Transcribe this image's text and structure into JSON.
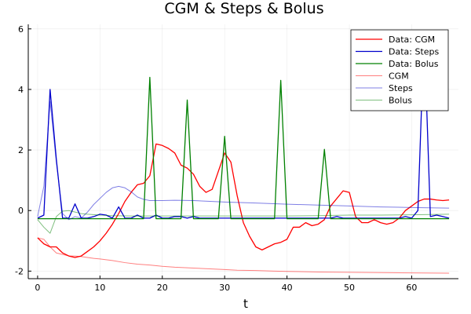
{
  "chart_data": {
    "type": "line",
    "title": "CGM & Steps & Bolus",
    "xlabel": "t",
    "ylabel": "",
    "xlim": [
      -1.5,
      67.5
    ],
    "ylim": [
      -2.25,
      6.15
    ],
    "xticks": [
      0,
      10,
      20,
      30,
      40,
      50,
      60
    ],
    "yticks": [
      -2,
      0,
      2,
      4,
      6
    ],
    "grid": true,
    "legend_position": "top-right",
    "series": [
      {
        "name": "Data: CGM",
        "color": "#ff0000",
        "opacity": 1,
        "width": 1.3,
        "x": [
          0,
          1,
          2,
          3,
          4,
          5,
          6,
          7,
          8,
          9,
          10,
          11,
          12,
          13,
          14,
          15,
          16,
          17,
          18,
          19,
          20,
          21,
          22,
          23,
          24,
          25,
          26,
          27,
          28,
          29,
          30,
          31,
          32,
          33,
          34,
          35,
          36,
          37,
          38,
          39,
          40,
          41,
          42,
          43,
          44,
          45,
          46,
          47,
          48,
          49,
          50,
          51,
          52,
          53,
          54,
          55,
          56,
          57,
          58,
          59,
          60,
          61,
          62,
          63,
          64,
          65,
          66
        ],
        "values": [
          -0.9,
          -1.1,
          -1.2,
          -1.2,
          -1.4,
          -1.5,
          -1.55,
          -1.5,
          -1.35,
          -1.2,
          -1.0,
          -0.75,
          -0.45,
          -0.1,
          0.3,
          0.6,
          0.85,
          0.9,
          1.15,
          2.2,
          2.15,
          2.05,
          1.9,
          1.5,
          1.4,
          1.2,
          0.8,
          0.6,
          0.7,
          1.3,
          1.9,
          1.6,
          0.5,
          -0.4,
          -0.85,
          -1.2,
          -1.3,
          -1.2,
          -1.1,
          -1.05,
          -0.95,
          -0.55,
          -0.55,
          -0.4,
          -0.5,
          -0.45,
          -0.3,
          0.15,
          0.4,
          0.65,
          0.6,
          -0.2,
          -0.4,
          -0.4,
          -0.3,
          -0.4,
          -0.45,
          -0.4,
          -0.25,
          0.0,
          0.15,
          0.3,
          0.38,
          0.38,
          0.35,
          0.33,
          0.35
        ]
      },
      {
        "name": "Data: Steps",
        "color": "#0000cc",
        "opacity": 1,
        "width": 1.3,
        "x": [
          0,
          1,
          2,
          3,
          4,
          5,
          6,
          7,
          8,
          9,
          10,
          11,
          12,
          13,
          14,
          15,
          16,
          17,
          18,
          19,
          20,
          21,
          22,
          23,
          24,
          25,
          26,
          27,
          28,
          29,
          30,
          31,
          32,
          33,
          34,
          35,
          36,
          37,
          38,
          39,
          40,
          41,
          42,
          43,
          44,
          45,
          46,
          47,
          48,
          49,
          50,
          51,
          52,
          53,
          54,
          55,
          56,
          57,
          58,
          59,
          60,
          61,
          62,
          63,
          64,
          65,
          66
        ],
        "values": [
          -0.25,
          -0.15,
          4.0,
          1.7,
          -0.25,
          -0.25,
          0.22,
          -0.25,
          -0.25,
          -0.2,
          -0.12,
          -0.15,
          -0.25,
          0.12,
          -0.25,
          -0.25,
          -0.15,
          -0.25,
          -0.25,
          -0.15,
          -0.25,
          -0.25,
          -0.2,
          -0.2,
          -0.25,
          -0.2,
          -0.25,
          -0.25,
          -0.25,
          -0.25,
          -0.25,
          -0.25,
          -0.25,
          -0.25,
          -0.25,
          -0.25,
          -0.25,
          -0.25,
          -0.25,
          -0.25,
          -0.25,
          -0.25,
          -0.25,
          -0.25,
          -0.25,
          -0.25,
          -0.25,
          -0.25,
          -0.2,
          -0.25,
          -0.25,
          -0.25,
          -0.25,
          -0.25,
          -0.25,
          -0.25,
          -0.25,
          -0.25,
          -0.25,
          -0.2,
          -0.25,
          0.0,
          5.9,
          -0.2,
          -0.15,
          -0.2,
          -0.25
        ]
      },
      {
        "name": "Data: Bolus",
        "color": "#008000",
        "opacity": 1,
        "width": 1.3,
        "x": [
          0,
          1,
          2,
          3,
          4,
          5,
          6,
          7,
          8,
          9,
          10,
          11,
          12,
          13,
          14,
          15,
          16,
          17,
          18,
          19,
          20,
          21,
          22,
          23,
          24,
          25,
          26,
          27,
          28,
          29,
          30,
          31,
          32,
          33,
          34,
          35,
          36,
          37,
          38,
          39,
          40,
          41,
          42,
          43,
          44,
          45,
          46,
          47,
          48,
          49,
          50,
          51,
          52,
          53,
          54,
          55,
          56,
          57,
          58,
          59,
          60,
          61,
          62,
          63,
          64,
          65,
          66
        ],
        "values": [
          -0.27,
          -0.27,
          -0.27,
          -0.27,
          -0.27,
          -0.27,
          -0.27,
          -0.27,
          -0.27,
          -0.27,
          -0.27,
          -0.27,
          -0.27,
          -0.27,
          -0.27,
          -0.27,
          -0.27,
          -0.27,
          4.4,
          -0.27,
          -0.27,
          -0.27,
          -0.27,
          -0.27,
          3.65,
          -0.27,
          -0.27,
          -0.27,
          -0.27,
          -0.27,
          2.45,
          -0.27,
          -0.27,
          -0.27,
          -0.27,
          -0.27,
          -0.27,
          -0.27,
          -0.27,
          4.3,
          -0.27,
          -0.27,
          -0.27,
          -0.27,
          -0.27,
          -0.27,
          2.02,
          -0.27,
          -0.27,
          -0.27,
          -0.27,
          -0.27,
          -0.27,
          -0.27,
          -0.27,
          -0.27,
          -0.27,
          -0.27,
          -0.27,
          -0.27,
          -0.27,
          -0.27,
          -0.27,
          -0.27,
          -0.27,
          -0.27,
          -0.27
        ]
      },
      {
        "name": "CGM",
        "color": "#ff0000",
        "opacity": 0.5,
        "width": 1,
        "x": [
          0,
          1,
          2,
          3,
          4,
          5,
          6,
          7,
          8,
          9,
          10,
          12,
          14,
          16,
          18,
          20,
          22,
          25,
          28,
          30,
          32,
          35,
          38,
          40,
          45,
          50,
          55,
          60,
          66
        ],
        "values": [
          -0.9,
          -0.95,
          -1.2,
          -1.4,
          -1.45,
          -1.5,
          -1.5,
          -1.52,
          -1.55,
          -1.58,
          -1.6,
          -1.65,
          -1.72,
          -1.77,
          -1.8,
          -1.84,
          -1.87,
          -1.9,
          -1.93,
          -1.95,
          -1.97,
          -1.98,
          -2.0,
          -2.01,
          -2.03,
          -2.04,
          -2.05,
          -2.06,
          -2.07
        ]
      },
      {
        "name": "Steps",
        "color": "#0000cc",
        "opacity": 0.5,
        "width": 1,
        "x": [
          0,
          1,
          2,
          3,
          4,
          5,
          6,
          7,
          8,
          9,
          10,
          11,
          12,
          13,
          14,
          15,
          16,
          17,
          18,
          20,
          22,
          25,
          28,
          30,
          35,
          40,
          45,
          50,
          55,
          60,
          66
        ],
        "values": [
          -0.2,
          0.8,
          3.6,
          1.6,
          -0.1,
          -0.3,
          -0.2,
          -0.25,
          -0.05,
          0.2,
          0.4,
          0.6,
          0.75,
          0.8,
          0.75,
          0.62,
          0.45,
          0.37,
          0.33,
          0.33,
          0.34,
          0.33,
          0.3,
          0.28,
          0.25,
          0.21,
          0.18,
          0.15,
          0.12,
          0.1,
          0.08
        ]
      },
      {
        "name": "Bolus",
        "color": "#008000",
        "opacity": 0.5,
        "width": 1,
        "x": [
          0,
          1,
          2,
          3,
          4,
          5,
          6,
          7,
          8,
          10,
          12,
          15,
          20,
          25,
          30,
          35,
          40,
          45,
          50,
          55,
          60,
          66
        ],
        "values": [
          -0.3,
          -0.55,
          -0.75,
          -0.2,
          -0.02,
          0.0,
          -0.05,
          -0.1,
          -0.12,
          -0.15,
          -0.17,
          -0.18,
          -0.18,
          -0.18,
          -0.18,
          -0.18,
          -0.18,
          -0.17,
          -0.15,
          -0.15,
          -0.14,
          -0.12
        ]
      }
    ]
  }
}
